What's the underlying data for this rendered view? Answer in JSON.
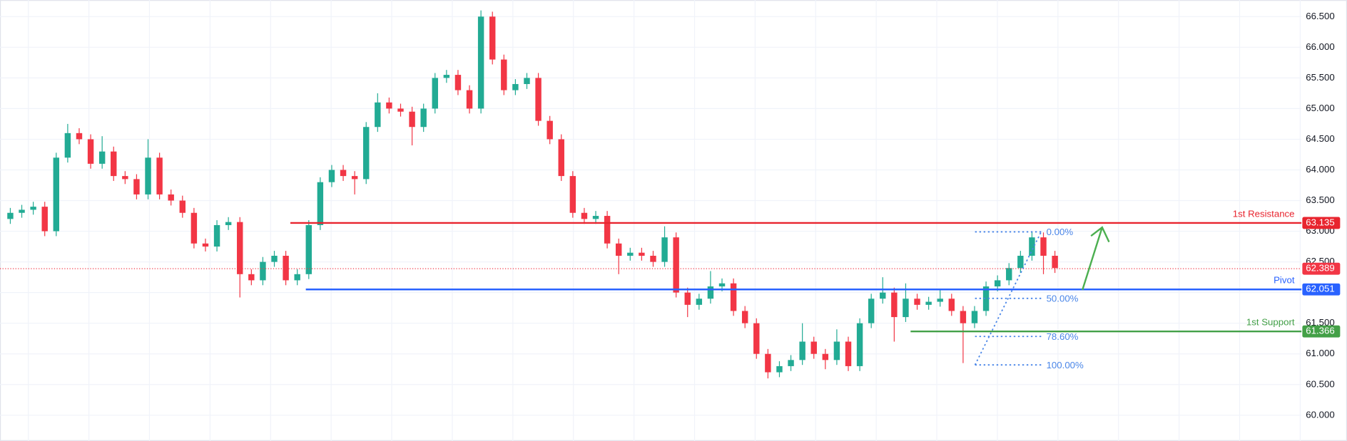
{
  "chart_data": {
    "type": "candlestick",
    "ylim": [
      59.58,
      66.77
    ],
    "yticks": [
      {
        "value": 60,
        "label": "60.000"
      },
      {
        "value": 60.5,
        "label": "60.500"
      },
      {
        "value": 61,
        "label": "61.000"
      },
      {
        "value": 61.5,
        "label": "61.500"
      },
      {
        "value": 62,
        "label": "62.000"
      },
      {
        "value": 62.5,
        "label": "62.500"
      },
      {
        "value": 63,
        "label": "63.000"
      },
      {
        "value": 63.5,
        "label": "63.500"
      },
      {
        "value": 64,
        "label": "64.000"
      },
      {
        "value": 64.5,
        "label": "64.500"
      },
      {
        "value": 65,
        "label": "65.000"
      },
      {
        "value": 65.5,
        "label": "65.500"
      },
      {
        "value": 66,
        "label": "66.000"
      },
      {
        "value": 66.5,
        "label": "66.500"
      }
    ],
    "grid": true,
    "up_color": "#22ab94",
    "down_color": "#f23645",
    "candles": [
      [
        63.2,
        63.38,
        63.12,
        63.3
      ],
      [
        63.3,
        63.43,
        63.22,
        63.35
      ],
      [
        63.35,
        63.48,
        63.27,
        63.4
      ],
      [
        63.4,
        63.48,
        62.92,
        63.0
      ],
      [
        63.0,
        64.28,
        62.92,
        64.2
      ],
      [
        64.2,
        64.75,
        64.12,
        64.6
      ],
      [
        64.6,
        64.68,
        64.42,
        64.5
      ],
      [
        64.5,
        64.58,
        64.02,
        64.1
      ],
      [
        64.1,
        64.55,
        64.02,
        64.3
      ],
      [
        64.3,
        64.38,
        63.82,
        63.9
      ],
      [
        63.9,
        63.98,
        63.77,
        63.85
      ],
      [
        63.85,
        63.93,
        63.52,
        63.6
      ],
      [
        63.6,
        64.5,
        63.52,
        64.2
      ],
      [
        64.2,
        64.28,
        63.52,
        63.6
      ],
      [
        63.6,
        63.68,
        63.42,
        63.5
      ],
      [
        63.5,
        63.58,
        63.22,
        63.3
      ],
      [
        63.3,
        63.38,
        62.72,
        62.8
      ],
      [
        62.8,
        62.88,
        62.67,
        62.75
      ],
      [
        62.75,
        63.18,
        62.67,
        63.1
      ],
      [
        63.1,
        63.23,
        63.02,
        63.15
      ],
      [
        63.15,
        63.23,
        61.92,
        62.3
      ],
      [
        62.3,
        62.38,
        62.12,
        62.2
      ],
      [
        62.2,
        62.58,
        62.12,
        62.5
      ],
      [
        62.5,
        62.68,
        62.42,
        62.6
      ],
      [
        62.6,
        62.68,
        62.12,
        62.2
      ],
      [
        62.2,
        62.38,
        62.12,
        62.3
      ],
      [
        62.3,
        63.18,
        62.22,
        63.1
      ],
      [
        63.1,
        63.88,
        63.02,
        63.8
      ],
      [
        63.8,
        64.08,
        63.72,
        64.0
      ],
      [
        64.0,
        64.08,
        63.82,
        63.9
      ],
      [
        63.9,
        63.98,
        63.6,
        63.85
      ],
      [
        63.85,
        64.78,
        63.77,
        64.7
      ],
      [
        64.7,
        65.25,
        64.62,
        65.1
      ],
      [
        65.1,
        65.18,
        64.92,
        65.0
      ],
      [
        65.0,
        65.08,
        64.87,
        64.95
      ],
      [
        64.95,
        65.03,
        64.4,
        64.7
      ],
      [
        64.7,
        65.08,
        64.62,
        65.0
      ],
      [
        65.0,
        65.58,
        64.92,
        65.5
      ],
      [
        65.5,
        65.63,
        65.42,
        65.55
      ],
      [
        65.55,
        65.63,
        65.22,
        65.3
      ],
      [
        65.3,
        65.38,
        64.92,
        65.0
      ],
      [
        65.0,
        66.6,
        64.92,
        66.5
      ],
      [
        66.5,
        66.58,
        65.72,
        65.8
      ],
      [
        65.8,
        65.88,
        65.22,
        65.3
      ],
      [
        65.3,
        65.48,
        65.22,
        65.4
      ],
      [
        65.4,
        65.58,
        65.32,
        65.5
      ],
      [
        65.5,
        65.58,
        64.72,
        64.8
      ],
      [
        64.8,
        64.88,
        64.42,
        64.5
      ],
      [
        64.5,
        64.58,
        63.82,
        63.9
      ],
      [
        63.9,
        63.98,
        63.22,
        63.3
      ],
      [
        63.3,
        63.38,
        63.12,
        63.2
      ],
      [
        63.2,
        63.33,
        63.12,
        63.25
      ],
      [
        63.25,
        63.33,
        62.72,
        62.8
      ],
      [
        62.8,
        62.88,
        62.3,
        62.6
      ],
      [
        62.6,
        62.73,
        62.52,
        62.65
      ],
      [
        62.65,
        62.73,
        62.52,
        62.6
      ],
      [
        62.6,
        62.68,
        62.42,
        62.5
      ],
      [
        62.5,
        63.08,
        62.42,
        62.9
      ],
      [
        62.9,
        62.98,
        61.92,
        62.0
      ],
      [
        62.0,
        62.08,
        61.6,
        61.8
      ],
      [
        61.8,
        61.98,
        61.72,
        61.9
      ],
      [
        61.9,
        62.35,
        61.82,
        62.1
      ],
      [
        62.1,
        62.23,
        62.02,
        62.15
      ],
      [
        62.15,
        62.23,
        61.62,
        61.7
      ],
      [
        61.7,
        61.78,
        61.42,
        61.5
      ],
      [
        61.5,
        61.58,
        60.92,
        61.0
      ],
      [
        61.0,
        61.08,
        60.6,
        60.7
      ],
      [
        60.7,
        60.88,
        60.62,
        60.8
      ],
      [
        60.8,
        60.98,
        60.72,
        60.9
      ],
      [
        60.9,
        61.5,
        60.82,
        61.2
      ],
      [
        61.2,
        61.28,
        60.92,
        61.0
      ],
      [
        61.0,
        61.08,
        60.75,
        60.9
      ],
      [
        60.9,
        61.4,
        60.82,
        61.2
      ],
      [
        61.2,
        61.28,
        60.72,
        60.8
      ],
      [
        60.8,
        61.58,
        60.72,
        61.5
      ],
      [
        61.5,
        61.98,
        61.42,
        61.9
      ],
      [
        61.9,
        62.25,
        61.82,
        62.0
      ],
      [
        62.0,
        62.08,
        61.2,
        61.6
      ],
      [
        61.6,
        62.15,
        61.52,
        61.9
      ],
      [
        61.9,
        61.98,
        61.72,
        61.8
      ],
      [
        61.8,
        61.93,
        61.72,
        61.85
      ],
      [
        61.85,
        62.05,
        61.77,
        61.9
      ],
      [
        61.9,
        61.98,
        61.62,
        61.7
      ],
      [
        61.7,
        61.78,
        60.85,
        61.5
      ],
      [
        61.5,
        61.78,
        61.42,
        61.7
      ],
      [
        61.7,
        62.18,
        61.62,
        62.1
      ],
      [
        62.1,
        62.28,
        62.02,
        62.2
      ],
      [
        62.2,
        62.48,
        62.12,
        62.4
      ],
      [
        62.4,
        62.68,
        62.32,
        62.6
      ],
      [
        62.6,
        63.0,
        62.52,
        62.9
      ],
      [
        62.9,
        62.98,
        62.3,
        62.6
      ],
      [
        62.6,
        62.68,
        62.32,
        62.4
      ]
    ],
    "levels": [
      {
        "name": "1st Resistance",
        "value": 63.135,
        "color": "#e8242e"
      },
      {
        "name": "Pivot",
        "value": 62.051,
        "color": "#2962ff"
      },
      {
        "name": "1st Support",
        "value": 61.366,
        "color": "#43a047"
      }
    ],
    "last_price": {
      "value": 62.389,
      "color": "#f23645"
    },
    "fib": {
      "high": 62.99,
      "low": 60.82,
      "color": "#4a86e8",
      "levels": [
        {
          "value": 0,
          "label": "0.00%"
        },
        {
          "value": 50,
          "label": "50.00%"
        },
        {
          "value": 78.6,
          "label": "78.60%"
        },
        {
          "value": 100,
          "label": "100.00%"
        }
      ]
    }
  }
}
